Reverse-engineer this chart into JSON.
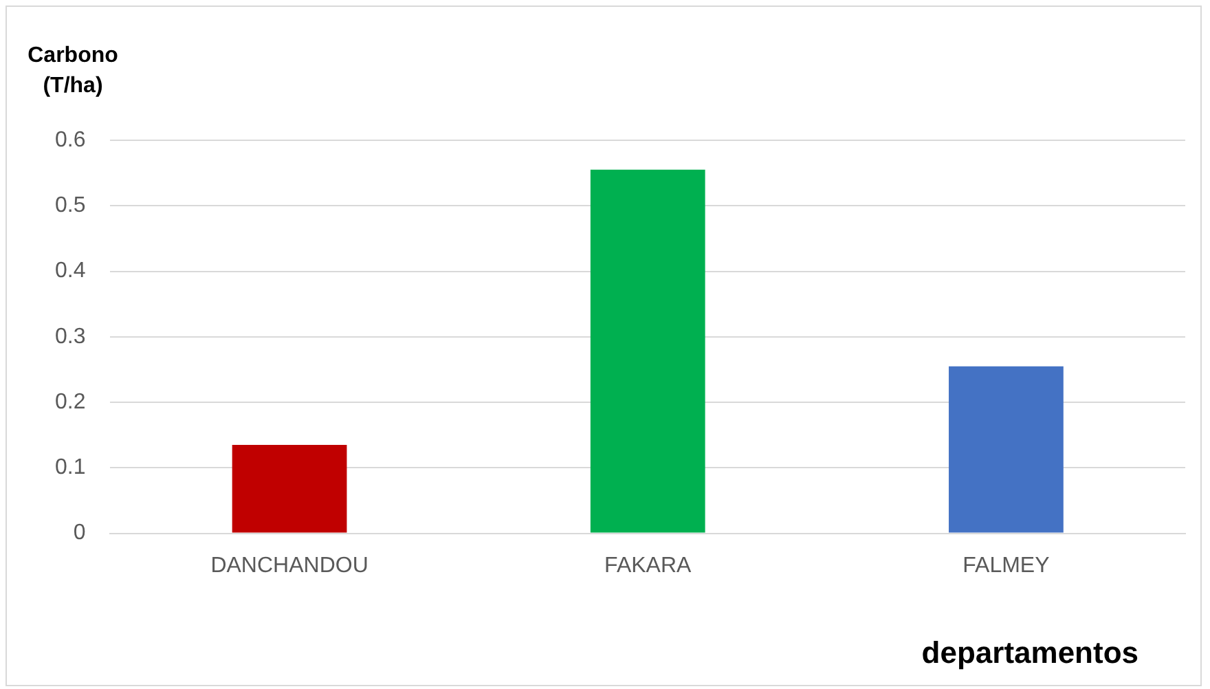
{
  "chart_data": {
    "type": "bar",
    "ylabel": "Carbono (T/ha)",
    "xlabel": "departamentos",
    "categories": [
      "DANCHANDOU",
      "FAKARA",
      "FALMEY"
    ],
    "values": [
      0.135,
      0.555,
      0.255
    ],
    "colors": [
      "#c00000",
      "#00b050",
      "#4472c4"
    ],
    "ylim": [
      0,
      0.6
    ],
    "yticks": [
      0,
      0.1,
      0.2,
      0.3,
      0.4,
      0.5,
      0.6
    ],
    "grid": "y",
    "legend": false
  }
}
